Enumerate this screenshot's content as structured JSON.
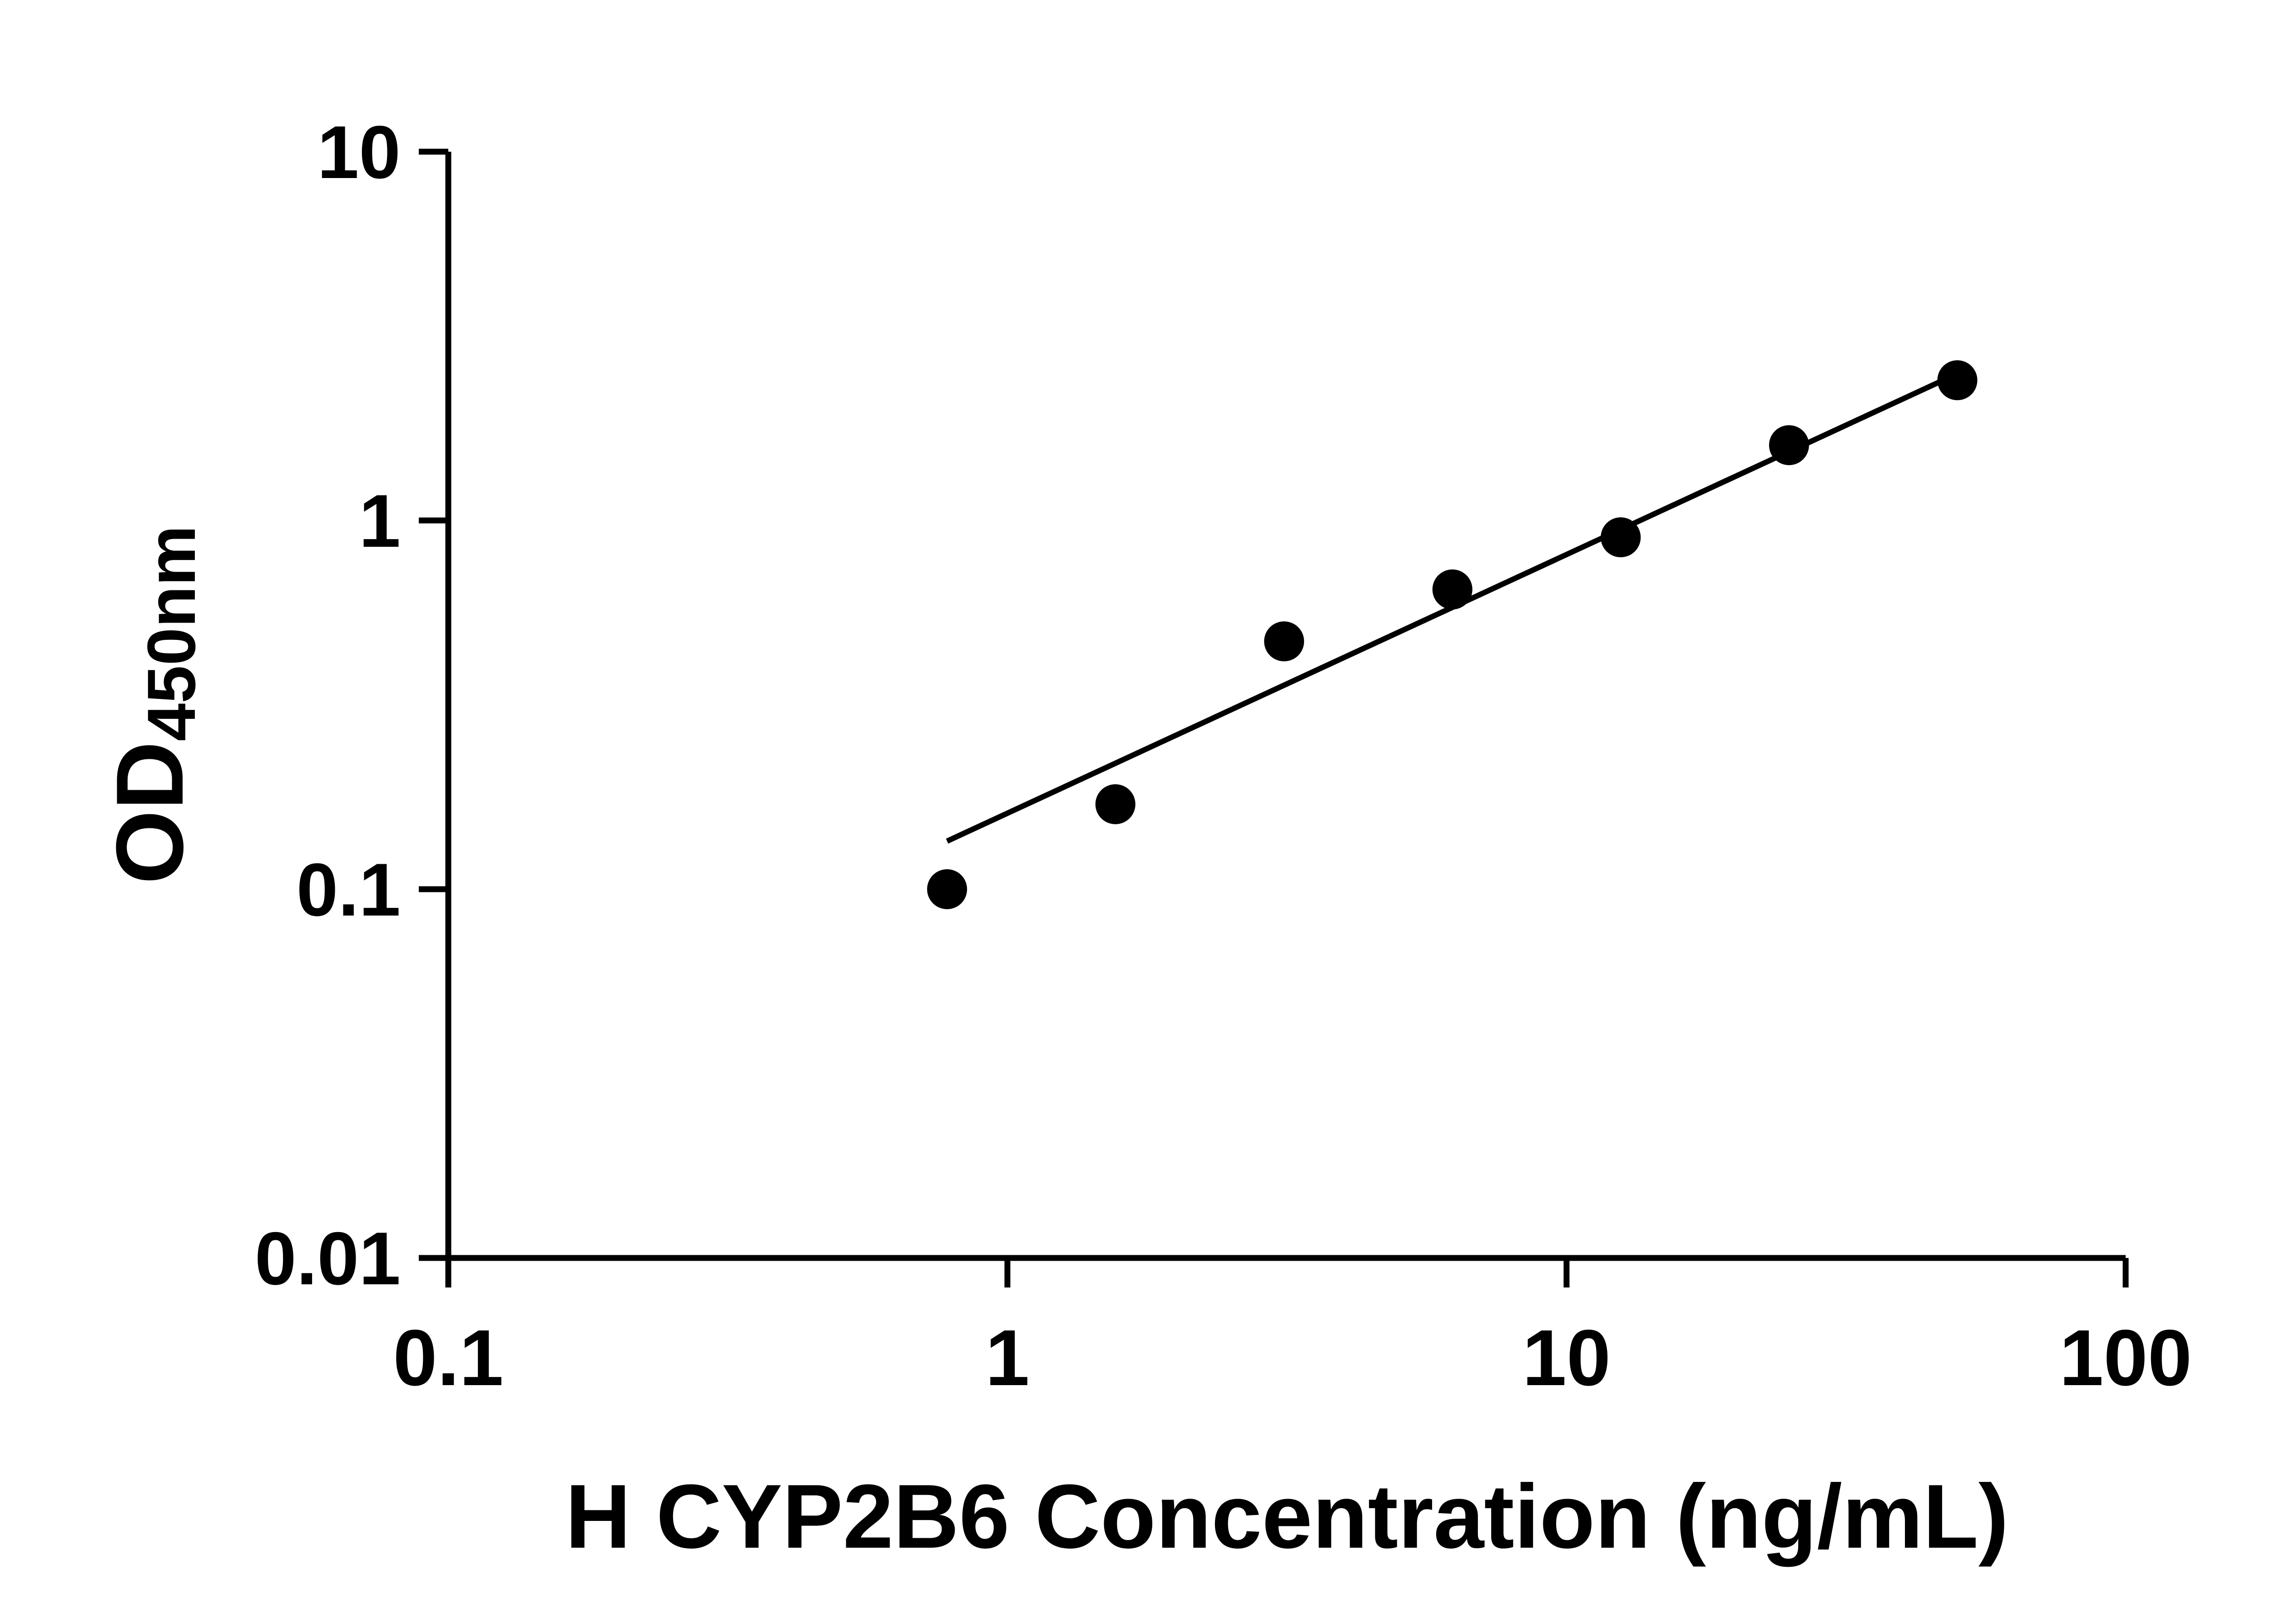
{
  "chart": {
    "x_title": "H CYP2B6 Concentration (ng/mL)",
    "y_title_main": "OD",
    "y_title_sub": "450nm"
  },
  "chart_data": {
    "type": "scatter",
    "title": "",
    "xlabel": "H CYP2B6 Concentration (ng/mL)",
    "ylabel": "OD450nm",
    "x_scale": "log",
    "y_scale": "log",
    "xlim": [
      0.1,
      100
    ],
    "ylim": [
      0.01,
      10
    ],
    "x_ticks": [
      0.1,
      1,
      10,
      100
    ],
    "x_tick_labels": [
      "0.1",
      "1",
      "10",
      "100"
    ],
    "y_ticks": [
      0.01,
      0.1,
      1,
      10
    ],
    "y_tick_labels": [
      "0.01",
      "0.1",
      "1",
      "10"
    ],
    "grid": false,
    "legend": false,
    "background_color": "#ffffff",
    "axis_color": "#000000",
    "series": [
      {
        "name": "standard-curve-points",
        "type": "scatter",
        "color": "#000000",
        "marker": "circle",
        "x": [
          0.78,
          1.56,
          3.125,
          6.25,
          12.5,
          25,
          50
        ],
        "y": [
          0.1,
          0.17,
          0.47,
          0.65,
          0.9,
          1.6,
          2.4
        ]
      }
    ],
    "trend_line": {
      "name": "fit-line",
      "color": "#000000",
      "x": [
        0.78,
        50
      ],
      "y": [
        0.135,
        2.5
      ]
    }
  }
}
